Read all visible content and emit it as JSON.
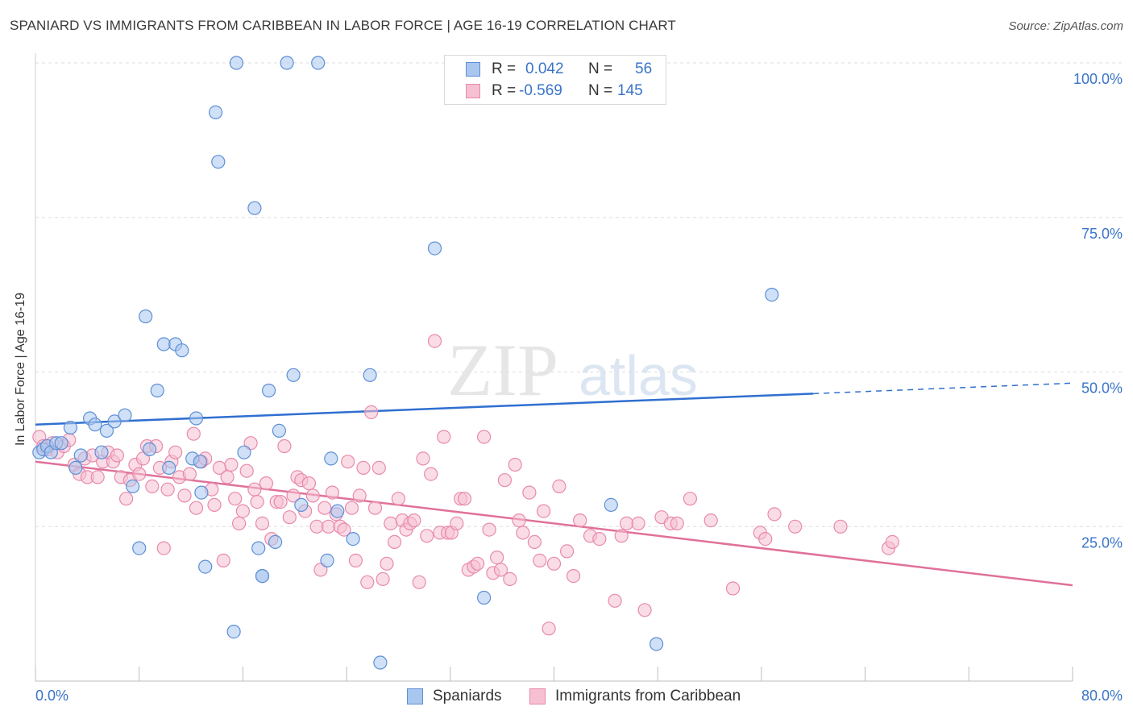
{
  "title": "SPANIARD VS IMMIGRANTS FROM CARIBBEAN IN LABOR FORCE | AGE 16-19 CORRELATION CHART",
  "source": "Source: ZipAtlas.com",
  "watermark": {
    "zip": "ZIP",
    "atlas": "atlas"
  },
  "legend_top": {
    "rows": [
      {
        "r_label": "R =",
        "r_value": "0.042",
        "n_label": "N =",
        "n_value": "56"
      },
      {
        "r_label": "R =",
        "r_value": "-0.569",
        "n_label": "N =",
        "n_value": "145"
      }
    ]
  },
  "legend_bottom": [
    "Spaniards",
    "Immigrants from Caribbean"
  ],
  "colors": {
    "blue_fill": "#a9c6ee",
    "blue_stroke": "#5d8fd6",
    "blue_line": "#2f6fd0",
    "pink_fill": "#f6bfd2",
    "pink_stroke": "#e88aab",
    "pink_line": "#e0719a",
    "axis_text": "#3a74c8",
    "grid": "#dddddd"
  },
  "chart_data": {
    "type": "scatter",
    "title": "SPANIARD VS IMMIGRANTS FROM CARIBBEAN IN LABOR FORCE | AGE 16-19 CORRELATION CHART",
    "xlabel": "",
    "ylabel": "In Labor Force | Age 16-19",
    "xlim": [
      0,
      80
    ],
    "ylim": [
      0,
      100
    ],
    "x_tick_labels": [
      "0.0%",
      "80.0%"
    ],
    "y_tick_labels": [
      "25.0%",
      "50.0%",
      "75.0%",
      "100.0%"
    ],
    "y_ticks": [
      25,
      50,
      75,
      100
    ],
    "grid": true,
    "legend_position": "top-center",
    "series": [
      {
        "name": "Spaniards",
        "color": "#5d8fd6",
        "r": 0.042,
        "n": 56,
        "trend": {
          "x0": 0,
          "y0": 41.5,
          "x1": 60,
          "y1": 46.5,
          "dashed_to_x": 80,
          "dashed_to_y": 48.2
        },
        "points": [
          [
            0.3,
            37
          ],
          [
            0.6,
            37.5
          ],
          [
            0.9,
            38
          ],
          [
            1.2,
            37
          ],
          [
            1.6,
            38.5
          ],
          [
            2.0,
            38.5
          ],
          [
            2.7,
            41
          ],
          [
            3.1,
            34.5
          ],
          [
            3.5,
            36.5
          ],
          [
            4.2,
            42.5
          ],
          [
            4.6,
            41.5
          ],
          [
            5.1,
            37
          ],
          [
            5.5,
            40.5
          ],
          [
            6.1,
            42
          ],
          [
            6.9,
            43
          ],
          [
            7.5,
            31.5
          ],
          [
            8.0,
            21.5
          ],
          [
            8.5,
            59
          ],
          [
            8.8,
            37.5
          ],
          [
            9.4,
            47
          ],
          [
            9.9,
            54.5
          ],
          [
            10.3,
            34.5
          ],
          [
            10.8,
            54.5
          ],
          [
            11.3,
            53.5
          ],
          [
            12.1,
            36
          ],
          [
            12.4,
            42.5
          ],
          [
            12.8,
            30.5
          ],
          [
            12.7,
            35.5
          ],
          [
            13.9,
            92
          ],
          [
            13.1,
            18.5
          ],
          [
            14.1,
            84
          ],
          [
            15.3,
            8
          ],
          [
            15.5,
            100
          ],
          [
            16.1,
            37
          ],
          [
            16.9,
            76.5
          ],
          [
            17.2,
            21.5
          ],
          [
            17.5,
            17
          ],
          [
            18.0,
            47
          ],
          [
            18.5,
            22.5
          ],
          [
            18.8,
            40.5
          ],
          [
            19.4,
            100
          ],
          [
            19.9,
            49.5
          ],
          [
            20.5,
            28.5
          ],
          [
            21.8,
            100
          ],
          [
            22.8,
            36
          ],
          [
            22.5,
            19.5
          ],
          [
            23.3,
            27.5
          ],
          [
            24.5,
            23
          ],
          [
            25.8,
            49.5
          ],
          [
            26.6,
            3
          ],
          [
            30.8,
            70
          ],
          [
            34.6,
            13.5
          ],
          [
            44.4,
            28.5
          ],
          [
            47.9,
            6
          ],
          [
            56.8,
            62.5
          ],
          [
            17.5,
            17
          ]
        ]
      },
      {
        "name": "Immigrants from Caribbean",
        "color": "#e88aab",
        "r": -0.569,
        "n": 145,
        "trend": {
          "x0": 0,
          "y0": 35.5,
          "x1": 80,
          "y1": 15.5
        },
        "points": [
          [
            0.3,
            39.5
          ],
          [
            0.6,
            38
          ],
          [
            0.9,
            37.5
          ],
          [
            1.3,
            38.5
          ],
          [
            1.7,
            37
          ],
          [
            2.2,
            38
          ],
          [
            2.6,
            39
          ],
          [
            3.0,
            35
          ],
          [
            3.4,
            33.5
          ],
          [
            3.8,
            36
          ],
          [
            4.0,
            33
          ],
          [
            4.4,
            36.5
          ],
          [
            4.8,
            33
          ],
          [
            5.2,
            35.5
          ],
          [
            5.6,
            37
          ],
          [
            6.0,
            35.5
          ],
          [
            6.3,
            36.5
          ],
          [
            6.6,
            33
          ],
          [
            7.0,
            29.5
          ],
          [
            7.3,
            32.5
          ],
          [
            7.7,
            35
          ],
          [
            8.0,
            33.5
          ],
          [
            8.3,
            36
          ],
          [
            8.6,
            38
          ],
          [
            9.0,
            31.5
          ],
          [
            9.3,
            38
          ],
          [
            9.6,
            34.5
          ],
          [
            9.9,
            21.5
          ],
          [
            10.2,
            31
          ],
          [
            10.5,
            35.5
          ],
          [
            10.8,
            37
          ],
          [
            11.1,
            33
          ],
          [
            11.5,
            30
          ],
          [
            11.9,
            33.5
          ],
          [
            12.2,
            40
          ],
          [
            12.4,
            28
          ],
          [
            12.8,
            35.5
          ],
          [
            13.1,
            36
          ],
          [
            13.6,
            31
          ],
          [
            13.8,
            28.5
          ],
          [
            14.2,
            34.5
          ],
          [
            14.5,
            19.5
          ],
          [
            14.8,
            33
          ],
          [
            15.1,
            35
          ],
          [
            15.4,
            29.5
          ],
          [
            15.7,
            25.5
          ],
          [
            16.0,
            27.5
          ],
          [
            16.3,
            34
          ],
          [
            16.6,
            38.5
          ],
          [
            16.9,
            31
          ],
          [
            17.1,
            29
          ],
          [
            17.5,
            25.5
          ],
          [
            17.8,
            32
          ],
          [
            18.2,
            23
          ],
          [
            18.6,
            29
          ],
          [
            18.9,
            29
          ],
          [
            19.2,
            38
          ],
          [
            19.6,
            26.5
          ],
          [
            19.9,
            30
          ],
          [
            20.2,
            33
          ],
          [
            20.5,
            32.5
          ],
          [
            20.8,
            27.5
          ],
          [
            21.1,
            32
          ],
          [
            21.4,
            30
          ],
          [
            21.7,
            25
          ],
          [
            22.0,
            18
          ],
          [
            22.3,
            28
          ],
          [
            22.6,
            25
          ],
          [
            22.9,
            30.5
          ],
          [
            23.2,
            27
          ],
          [
            23.5,
            25
          ],
          [
            23.8,
            24.5
          ],
          [
            24.1,
            35.5
          ],
          [
            24.4,
            28
          ],
          [
            24.7,
            19.5
          ],
          [
            25.0,
            30
          ],
          [
            25.3,
            34.5
          ],
          [
            25.6,
            16
          ],
          [
            25.9,
            43.5
          ],
          [
            26.2,
            28
          ],
          [
            26.5,
            34.5
          ],
          [
            26.8,
            16.5
          ],
          [
            27.1,
            19
          ],
          [
            27.4,
            25.5
          ],
          [
            27.7,
            22.5
          ],
          [
            28.0,
            29.5
          ],
          [
            28.3,
            26
          ],
          [
            28.6,
            24.5
          ],
          [
            28.9,
            25.5
          ],
          [
            29.2,
            26
          ],
          [
            29.6,
            16
          ],
          [
            29.9,
            36
          ],
          [
            30.2,
            23.5
          ],
          [
            30.5,
            33.5
          ],
          [
            30.8,
            55
          ],
          [
            31.2,
            24
          ],
          [
            31.5,
            39.5
          ],
          [
            31.8,
            24
          ],
          [
            32.1,
            24
          ],
          [
            32.5,
            25.5
          ],
          [
            32.8,
            29.5
          ],
          [
            33.1,
            29.5
          ],
          [
            33.4,
            18
          ],
          [
            33.8,
            18.5
          ],
          [
            34.1,
            19
          ],
          [
            34.6,
            39.5
          ],
          [
            35.0,
            24.5
          ],
          [
            35.3,
            17.5
          ],
          [
            35.6,
            20
          ],
          [
            35.9,
            18
          ],
          [
            36.2,
            32.5
          ],
          [
            36.6,
            16.5
          ],
          [
            37.0,
            35
          ],
          [
            37.3,
            26
          ],
          [
            37.6,
            24
          ],
          [
            38.1,
            30.5
          ],
          [
            38.5,
            22.5
          ],
          [
            38.9,
            19.5
          ],
          [
            39.2,
            27.5
          ],
          [
            39.6,
            8.5
          ],
          [
            40.0,
            19
          ],
          [
            40.4,
            31.5
          ],
          [
            41.0,
            21
          ],
          [
            41.5,
            17
          ],
          [
            42.0,
            26
          ],
          [
            42.8,
            23.5
          ],
          [
            43.5,
            23
          ],
          [
            44.7,
            13
          ],
          [
            45.2,
            23.5
          ],
          [
            45.6,
            25.5
          ],
          [
            46.5,
            25.5
          ],
          [
            47.0,
            11.5
          ],
          [
            48.3,
            26.5
          ],
          [
            49.0,
            25.5
          ],
          [
            49.5,
            25.5
          ],
          [
            50.5,
            29.5
          ],
          [
            52.1,
            26
          ],
          [
            53.8,
            15
          ],
          [
            55.9,
            24
          ],
          [
            56.3,
            23
          ],
          [
            57.0,
            27
          ],
          [
            58.6,
            25
          ],
          [
            62.1,
            25
          ],
          [
            65.8,
            21.5
          ],
          [
            66.1,
            22.5
          ]
        ]
      }
    ]
  }
}
